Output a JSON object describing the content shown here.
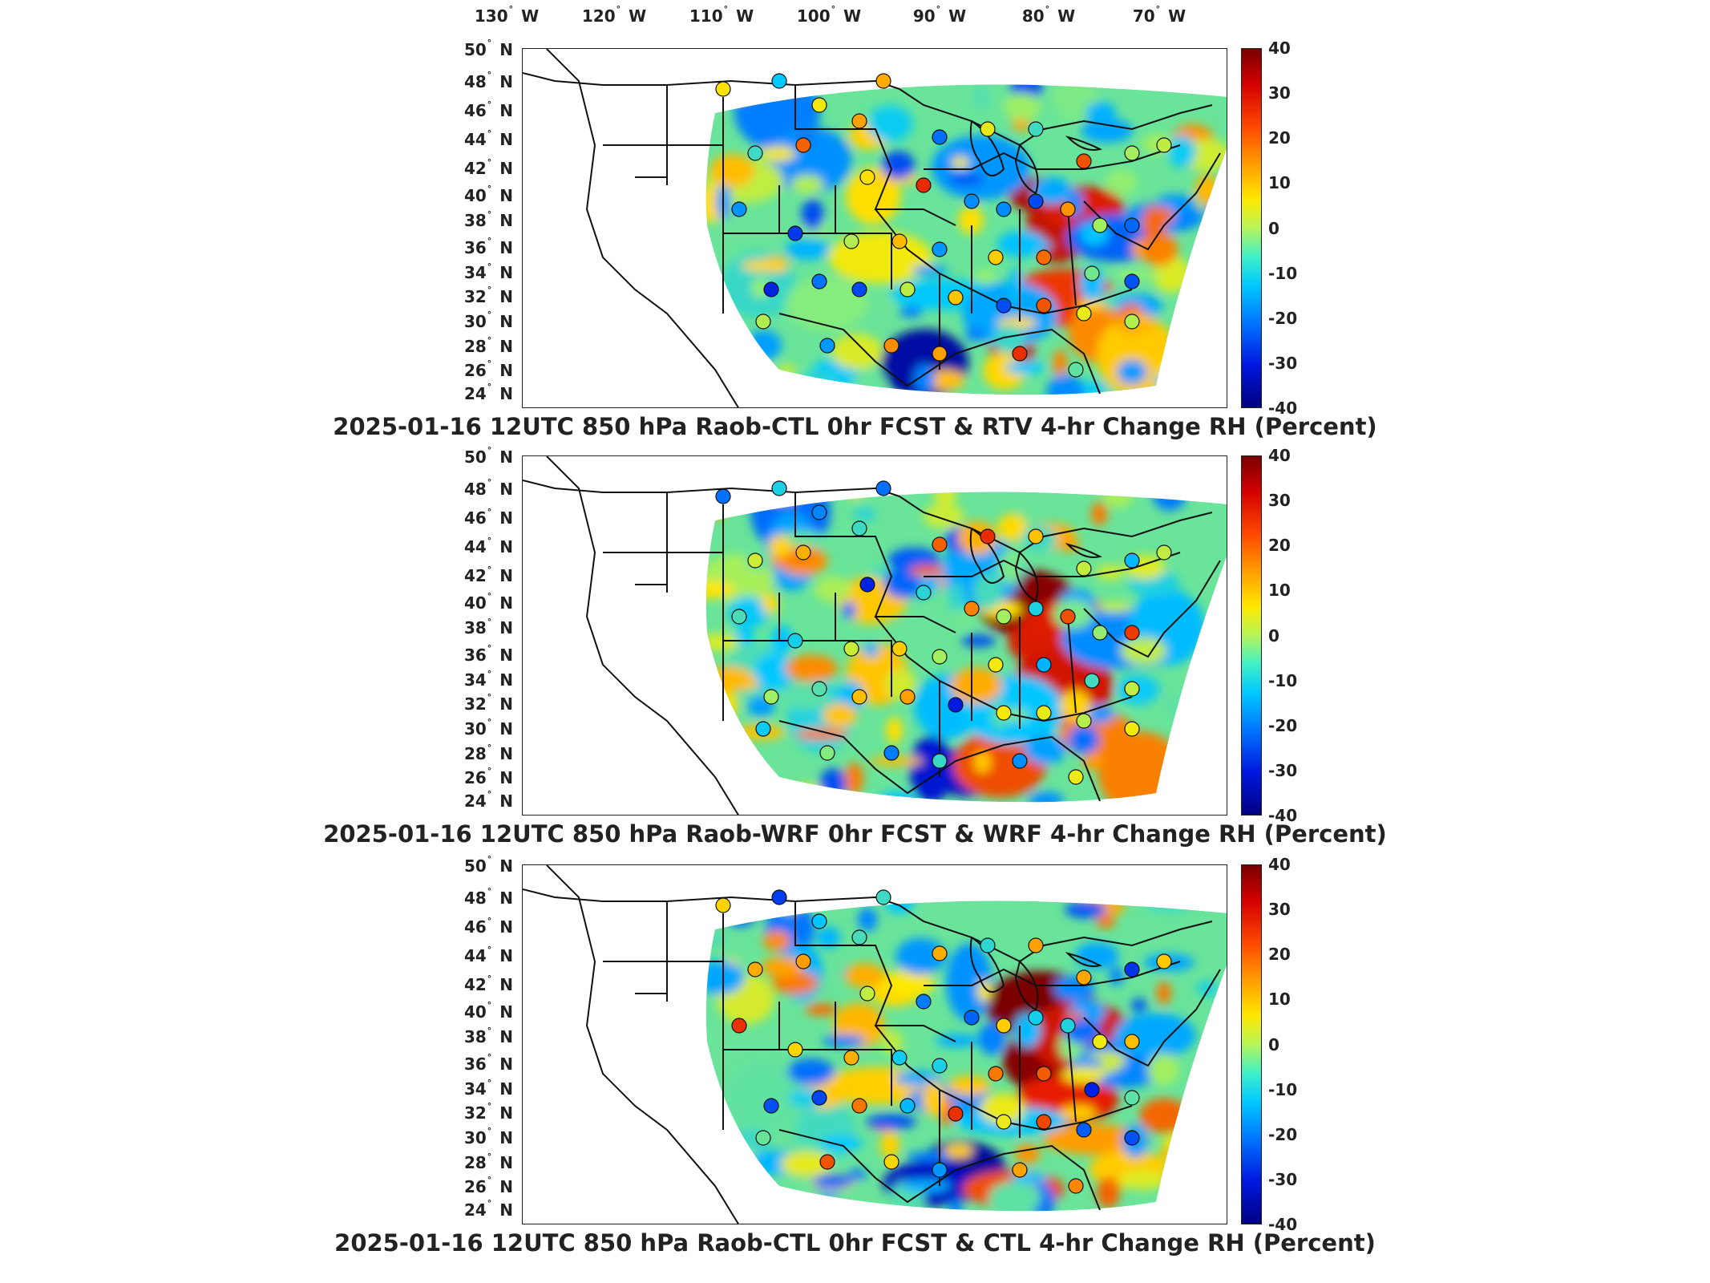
{
  "lon_ticks": [
    {
      "deg": "130",
      "dir": "W"
    },
    {
      "deg": "120",
      "dir": "W"
    },
    {
      "deg": "110",
      "dir": "W"
    },
    {
      "deg": "100",
      "dir": "W"
    },
    {
      "deg": "90",
      "dir": "W"
    },
    {
      "deg": "80",
      "dir": "W"
    },
    {
      "deg": "70",
      "dir": "W"
    }
  ],
  "lat_ticks": [
    {
      "deg": "50",
      "dir": "N"
    },
    {
      "deg": "48",
      "dir": "N"
    },
    {
      "deg": "46",
      "dir": "N"
    },
    {
      "deg": "44",
      "dir": "N"
    },
    {
      "deg": "42",
      "dir": "N"
    },
    {
      "deg": "40",
      "dir": "N"
    },
    {
      "deg": "38",
      "dir": "N"
    },
    {
      "deg": "36",
      "dir": "N"
    },
    {
      "deg": "34",
      "dir": "N"
    },
    {
      "deg": "32",
      "dir": "N"
    },
    {
      "deg": "30",
      "dir": "N"
    },
    {
      "deg": "28",
      "dir": "N"
    },
    {
      "deg": "26",
      "dir": "N"
    },
    {
      "deg": "24",
      "dir": "N"
    }
  ],
  "colorbar": {
    "ticks": [
      "40",
      "30",
      "20",
      "10",
      "0",
      "-10",
      "-20",
      "-30",
      "-40"
    ],
    "range": [
      -40,
      40
    ],
    "colormap": "jet",
    "colors": {
      "max": "#7a0000",
      "high": "#ff4a00",
      "mid_high": "#ffe800",
      "zero": "#b5f55a",
      "mid_low": "#00c8ff",
      "low": "#0018e0",
      "min": "#000080"
    }
  },
  "panels": [
    {
      "title": "2025-01-16 12UTC 850 hPa Raob-CTL 0hr FCST & RTV 4-hr Change RH (Percent)"
    },
    {
      "title": "2025-01-16 12UTC 850 hPa Raob-WRF 0hr FCST & WRF 4-hr Change RH (Percent)"
    },
    {
      "title": "2025-01-16 12UTC 850 hPa Raob-CTL 0hr FCST & CTL 4-hr Change RH (Percent)"
    }
  ],
  "map": {
    "projection": "lambert-conformal",
    "lon_range": [
      -130,
      -65
    ],
    "lat_range": [
      24,
      50
    ],
    "features": [
      "coastlines",
      "us-state-borders",
      "canada-border",
      "great-lakes"
    ],
    "field": "4-hr change in relative humidity (percent), 850 hPa",
    "markers": "radiosonde stations colored by Raob minus model 0hr forecast RH"
  }
}
